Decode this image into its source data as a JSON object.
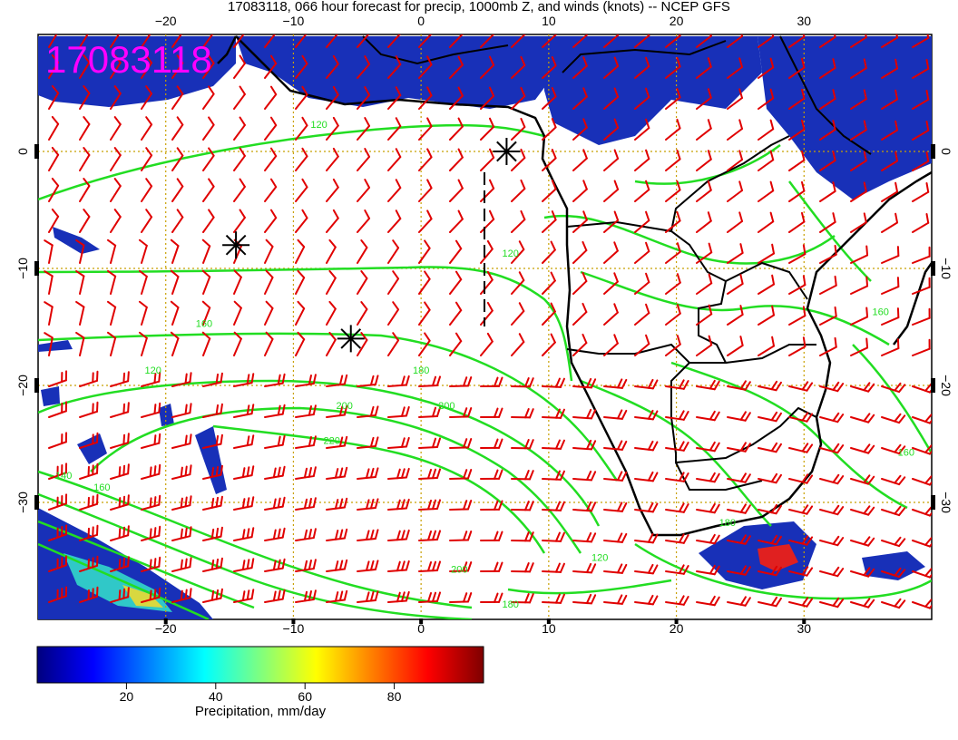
{
  "title": "17083118, 066 hour forecast for precip, 1000mb Z, and winds (knots) -- NCEP GFS",
  "stamp": "17083118",
  "map": {
    "lon_range": [
      -30,
      40
    ],
    "lat_range": [
      -40,
      10
    ],
    "grid_step": 10,
    "lon_ticks": [
      "−20",
      "−10",
      "0",
      "10",
      "20",
      "30"
    ],
    "lat_ticks": [
      "0",
      "−10",
      "−20",
      "−30"
    ],
    "colors": {
      "wind_barbs": "#e00000",
      "height_contours": "#22dd22",
      "coastline": "#000000",
      "grid": "#c8a000",
      "stamp": "#ff00ff"
    },
    "contour_labels": [
      {
        "text": "120",
        "lon": -21,
        "lat": -19
      },
      {
        "text": "160",
        "lon": -17,
        "lat": -15
      },
      {
        "text": "180",
        "lon": 0,
        "lat": -19
      },
      {
        "text": "200",
        "lon": -6,
        "lat": -22
      },
      {
        "text": "200",
        "lon": 2,
        "lat": -22
      },
      {
        "text": "220",
        "lon": -7,
        "lat": -25
      },
      {
        "text": "120",
        "lon": -8,
        "lat": 2
      },
      {
        "text": "120",
        "lon": 7,
        "lat": -9
      },
      {
        "text": "160",
        "lon": -25,
        "lat": -29
      },
      {
        "text": "140",
        "lon": -28,
        "lat": -28
      },
      {
        "text": "200",
        "lon": 3,
        "lat": -36
      },
      {
        "text": "180",
        "lon": 7,
        "lat": -39
      },
      {
        "text": "180",
        "lon": 24,
        "lat": -32
      },
      {
        "text": "160",
        "lon": 38,
        "lat": -26
      },
      {
        "text": "160",
        "lon": 36,
        "lat": -14
      },
      {
        "text": "120",
        "lon": 14,
        "lat": -35
      }
    ],
    "markers": [
      {
        "name": "low-marker",
        "lon": -14.5,
        "lat": -8
      },
      {
        "name": "low-marker",
        "lon": -5.5,
        "lat": -16
      },
      {
        "name": "low-marker",
        "lon": 6.7,
        "lat": 0
      }
    ]
  },
  "colorbar": {
    "label": "Precipitation, mm/day",
    "ticks": [
      {
        "label": "20",
        "value": 20
      },
      {
        "label": "40",
        "value": 40
      },
      {
        "label": "60",
        "value": 60
      },
      {
        "label": "80",
        "value": 80
      }
    ],
    "range": [
      0,
      100
    ],
    "colors": [
      "#00007f",
      "#0000ff",
      "#007fff",
      "#00ffff",
      "#7fff7f",
      "#ffff00",
      "#ff7f00",
      "#ff0000",
      "#7f0000"
    ]
  }
}
